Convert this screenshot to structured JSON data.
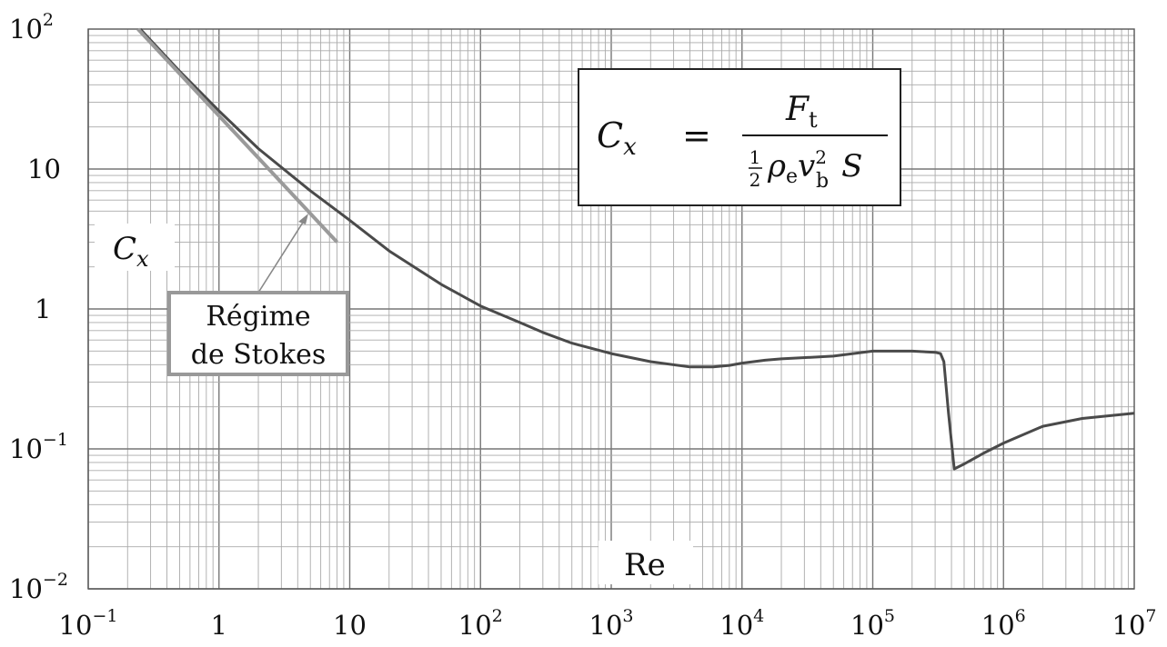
{
  "chart_data": {
    "type": "line",
    "xscale": "log",
    "yscale": "log",
    "xlim": [
      0.1,
      10000000
    ],
    "ylim": [
      0.01,
      100
    ],
    "grid": true,
    "xlabel": "Re",
    "ylabel": "C_x",
    "x_ticks": [
      {
        "base": "10",
        "exp": "−1"
      },
      {
        "base": "1",
        "exp": ""
      },
      {
        "base": "10",
        "exp": ""
      },
      {
        "base": "10",
        "exp": "2"
      },
      {
        "base": "10",
        "exp": "3"
      },
      {
        "base": "10",
        "exp": "4"
      },
      {
        "base": "10",
        "exp": "5"
      },
      {
        "base": "10",
        "exp": "6"
      },
      {
        "base": "10",
        "exp": "7"
      }
    ],
    "y_ticks": [
      {
        "base": "10",
        "exp": "−2"
      },
      {
        "base": "10",
        "exp": "−1"
      },
      {
        "base": "1",
        "exp": ""
      },
      {
        "base": "10",
        "exp": ""
      },
      {
        "base": "10",
        "exp": "2"
      }
    ],
    "series": [
      {
        "color": "#4a4a4a",
        "x": [
          0.25,
          0.5,
          1,
          2,
          5,
          10,
          20,
          50,
          100,
          200,
          300,
          500,
          1000,
          2000,
          4000,
          6000,
          8000,
          10000,
          15000,
          20000,
          50000,
          100000,
          200000,
          300000,
          330000,
          350000,
          380000,
          420000,
          500000,
          700000,
          1000000,
          2000000,
          4000000,
          10000000
        ],
        "y": [
          100,
          50,
          26,
          14,
          7,
          4.3,
          2.6,
          1.5,
          1.05,
          0.8,
          0.68,
          0.57,
          0.48,
          0.42,
          0.385,
          0.385,
          0.395,
          0.41,
          0.43,
          0.44,
          0.46,
          0.5,
          0.5,
          0.49,
          0.48,
          0.42,
          0.18,
          0.072,
          0.078,
          0.093,
          0.11,
          0.145,
          0.165,
          0.18
        ]
      },
      {
        "color": "#9a9a9a",
        "x": [
          0.24,
          8
        ],
        "y": [
          100,
          3
        ]
      }
    ],
    "annotations": {
      "stokes_label_line1": "Régime",
      "stokes_label_line2": "de Stokes"
    },
    "formula": {
      "lhs": "C",
      "lhs_sub": "x",
      "equals": "=",
      "num": "F",
      "num_sub": "t",
      "den_half_num": "1",
      "den_half_den": "2",
      "den_rho": "ρ",
      "den_rho_sub": "e",
      "den_v": "v",
      "den_v_sup": "2",
      "den_v_sub": "b",
      "den_s": "S"
    }
  }
}
